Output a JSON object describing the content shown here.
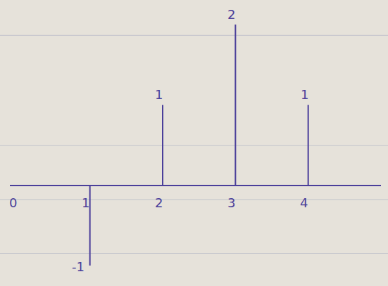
{
  "chart_data": {
    "type": "stem",
    "x": [
      1,
      2,
      3,
      4
    ],
    "values": [
      -1,
      1,
      2,
      1
    ],
    "xlim": [
      -0.1,
      5.0
    ],
    "xticks": [
      0,
      1,
      2,
      3,
      4
    ],
    "ylim": [
      -1.15,
      2.2
    ],
    "color": "#4b3f9a",
    "data_labels": true,
    "tick_labels": "x",
    "grid": false
  }
}
